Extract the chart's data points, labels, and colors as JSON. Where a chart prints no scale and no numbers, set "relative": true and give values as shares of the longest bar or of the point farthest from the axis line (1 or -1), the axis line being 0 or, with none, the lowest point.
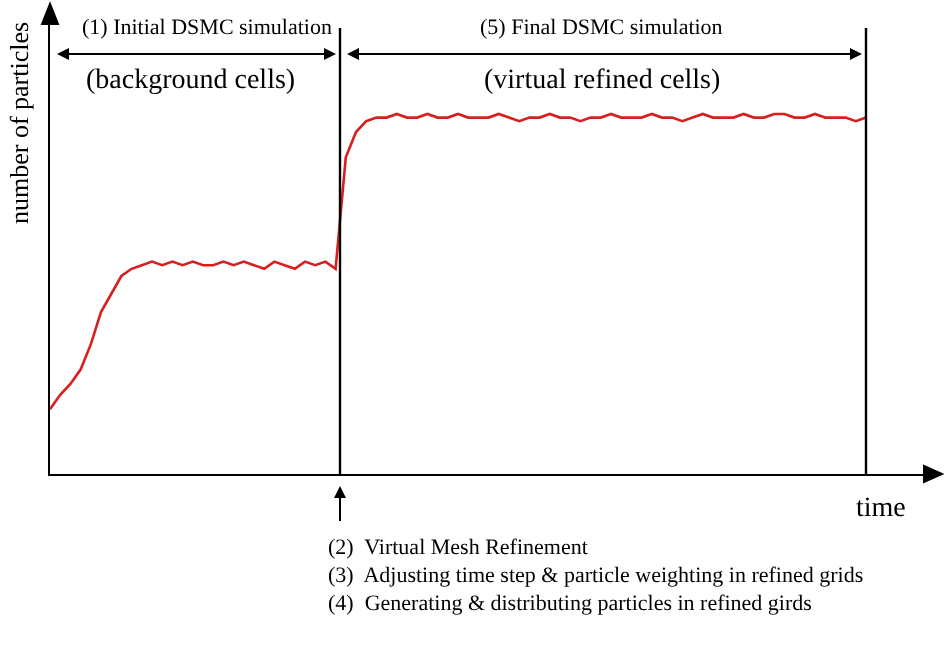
{
  "chart_data": {
    "type": "line",
    "relative": true,
    "marker": "none",
    "line_style": "solid",
    "xlabel": "time",
    "ylabel": "number of particles",
    "annotations": [
      "(1) Initial DSMC simulation",
      "(background cells)",
      "(5) Final DSMC simulation",
      "(virtual refined cells)",
      "(2)  Virtual Mesh Refinement",
      "(3)  Adjusting time step & particle weighting in refined grids",
      "(4)  Generating & distributing particles in refined girds"
    ],
    "categories": [
      null,
      null,
      null,
      null,
      null,
      null,
      null,
      null,
      null,
      null,
      null,
      null,
      null,
      null,
      null,
      null,
      null,
      null,
      null,
      null,
      null,
      null,
      null,
      null,
      null,
      null,
      null,
      null,
      null,
      null,
      null,
      null,
      null,
      null,
      null,
      null,
      null,
      null,
      null,
      null,
      null,
      null,
      null,
      null,
      null,
      null,
      null,
      null,
      null,
      null,
      null,
      null,
      null,
      null,
      null,
      null,
      null,
      null,
      null,
      null,
      null,
      null,
      null,
      null,
      null,
      null,
      null,
      null,
      null,
      null,
      null,
      null,
      null,
      null,
      null,
      null,
      null,
      null,
      null,
      null,
      null
    ],
    "series": [
      {
        "color": "#d81e1e",
        "values": [
          0.18,
          0.22,
          0.25,
          0.29,
          0.36,
          0.45,
          0.5,
          0.55,
          0.57,
          0.58,
          0.59,
          0.58,
          0.59,
          0.58,
          0.59,
          0.58,
          0.58,
          0.59,
          0.58,
          0.59,
          0.58,
          0.57,
          0.59,
          0.58,
          0.57,
          0.59,
          0.58,
          0.59,
          0.57,
          0.88,
          0.95,
          0.98,
          0.99,
          0.99,
          1.0,
          0.99,
          0.99,
          1.0,
          0.99,
          0.99,
          1.0,
          0.99,
          0.99,
          0.99,
          1.0,
          0.99,
          0.98,
          0.99,
          0.99,
          1.0,
          0.99,
          0.99,
          0.98,
          0.99,
          0.99,
          1.0,
          0.99,
          0.99,
          0.99,
          1.0,
          0.99,
          0.99,
          0.98,
          0.99,
          1.0,
          0.99,
          0.99,
          0.99,
          1.0,
          0.99,
          0.99,
          1.0,
          1.0,
          0.99,
          0.99,
          1.0,
          0.99,
          0.99,
          0.99,
          0.98,
          0.99
        ]
      }
    ]
  }
}
